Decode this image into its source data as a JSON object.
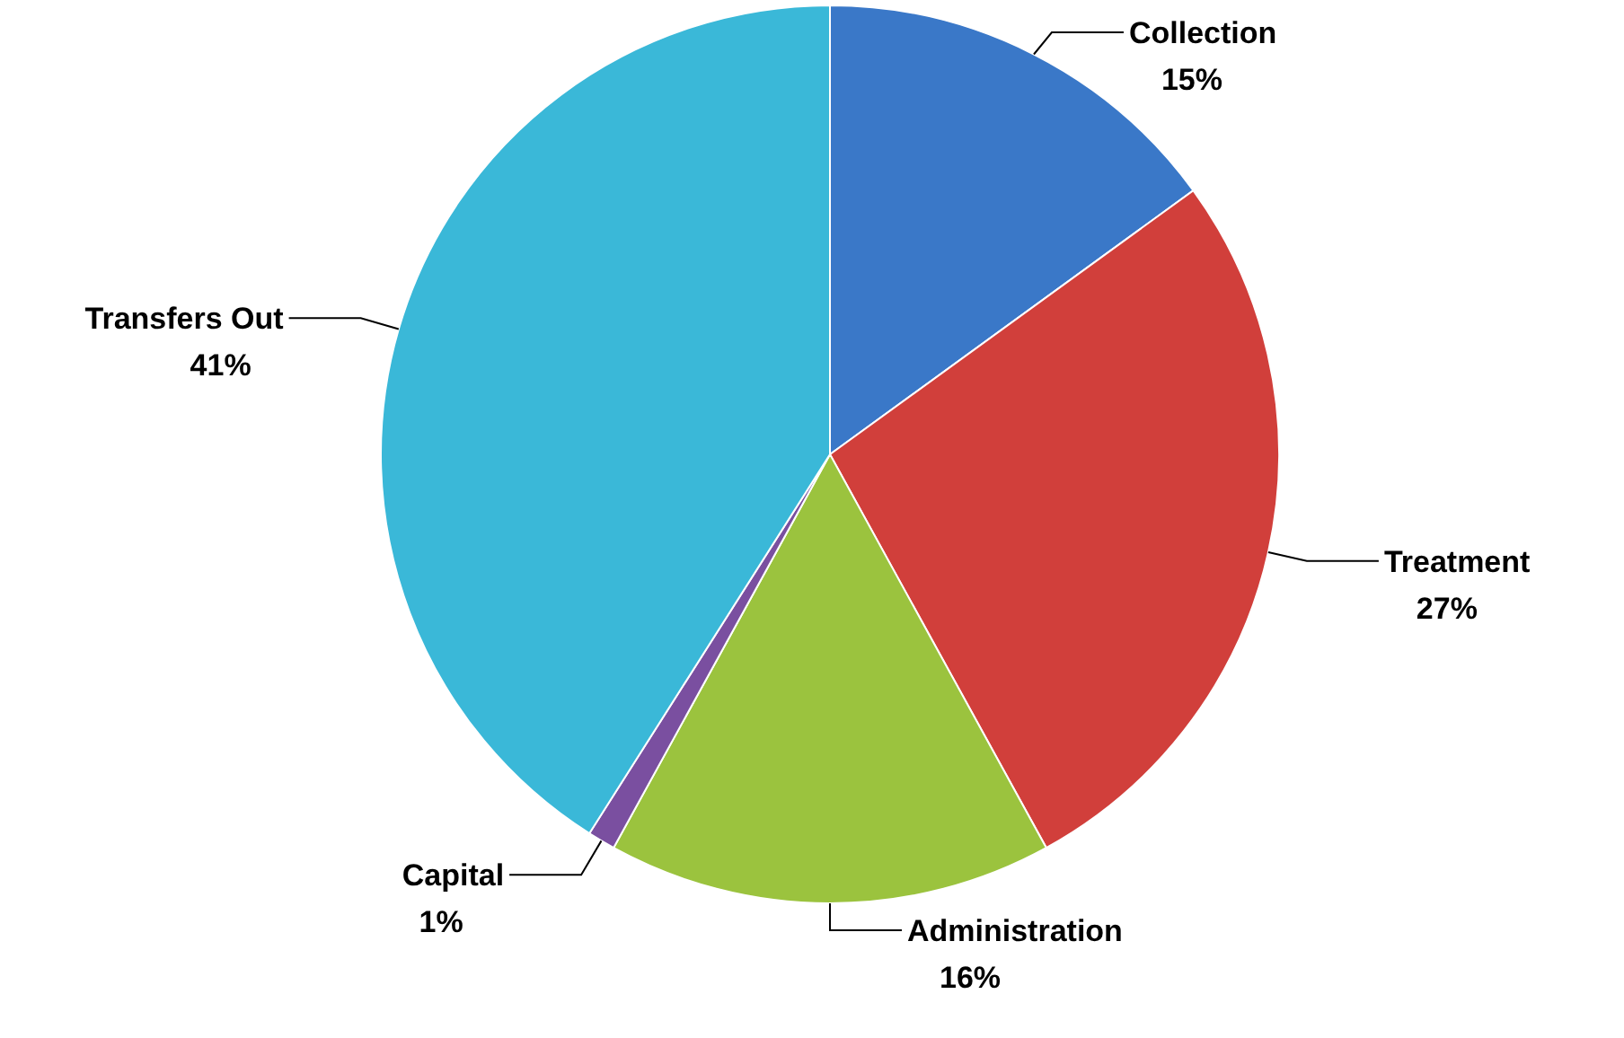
{
  "chart_data": {
    "type": "pie",
    "categories": [
      "Collection",
      "Treatment",
      "Administration",
      "Capital",
      "Transfers Out"
    ],
    "values": [
      15,
      27,
      16,
      1,
      41
    ],
    "colors": [
      "#3a78c8",
      "#d13f3b",
      "#9bc33e",
      "#7a4fa0",
      "#3ab8d8"
    ],
    "value_labels": [
      "15%",
      "27%",
      "16%",
      "1%",
      "41%"
    ],
    "legend": false
  }
}
